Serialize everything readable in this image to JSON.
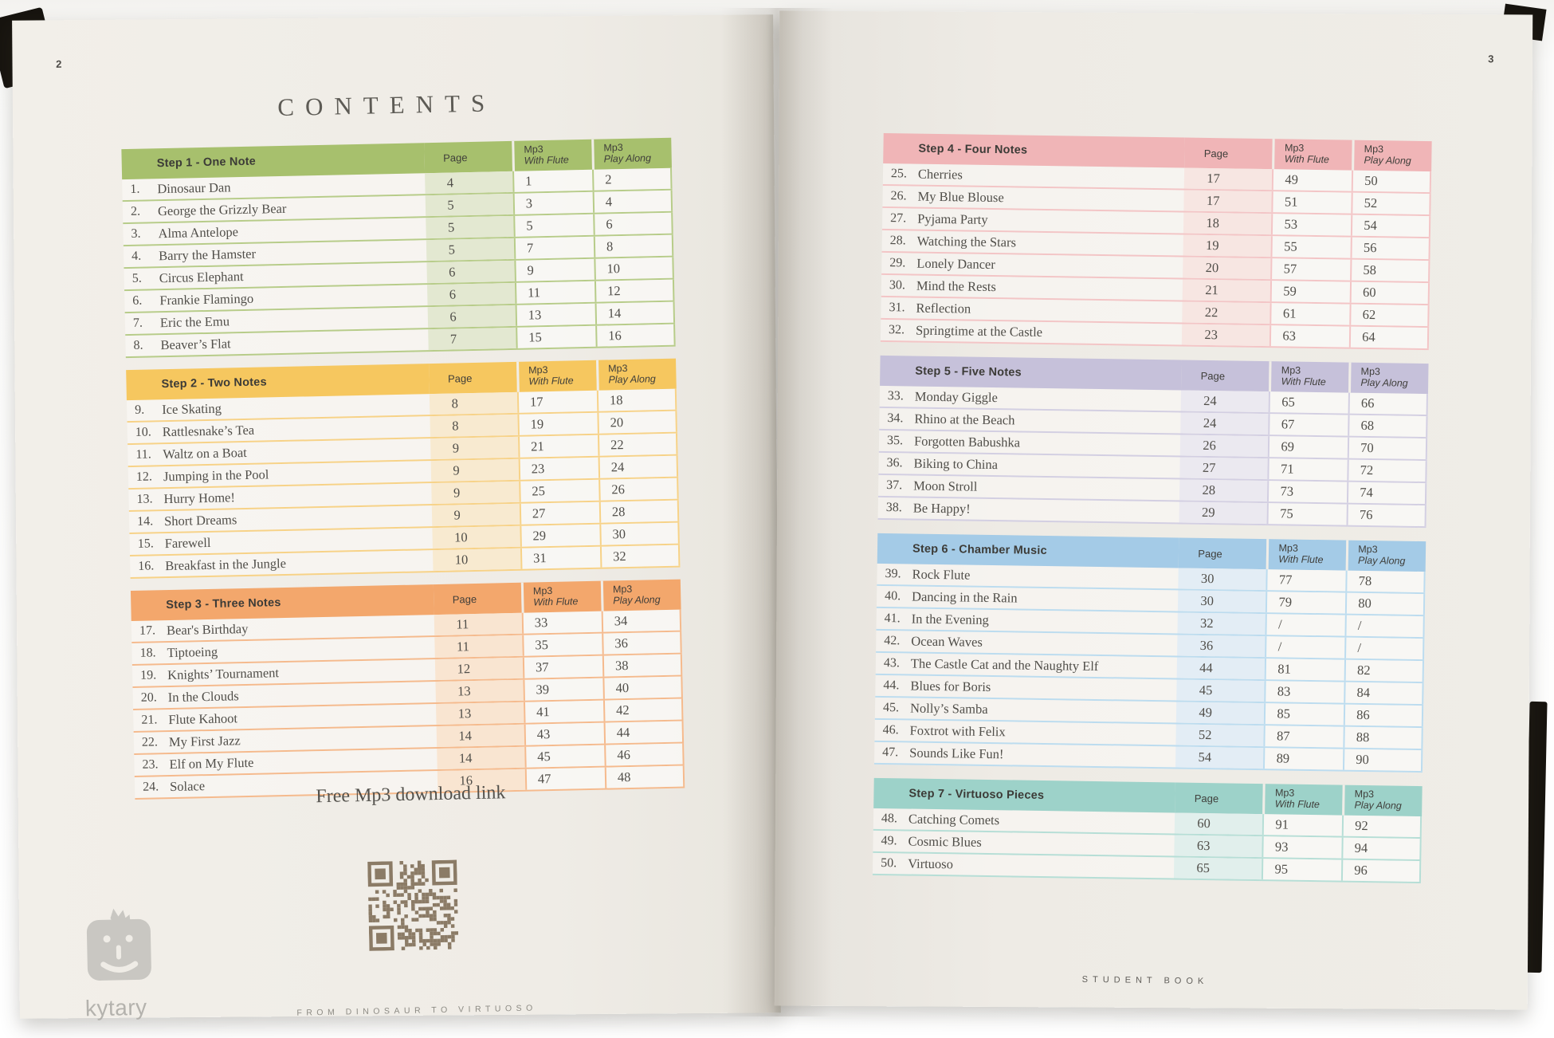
{
  "page_left": {
    "number": "2",
    "title": "CONTENTS",
    "free_mp3_text": "Free Mp3 download link",
    "footer": "FROM DINOSAUR TO VIRTUOSO",
    "brand": "kytary"
  },
  "page_right": {
    "number": "3",
    "footer": "STUDENT BOOK"
  },
  "column_headers": {
    "page": "Page",
    "mp3": "Mp3",
    "with_flute": "With Flute",
    "play_along": "Play Along"
  },
  "sections": [
    {
      "side": "left",
      "title": "Step 1 - One Note",
      "colors": {
        "band": "#a7c06d",
        "line": "#b7cc89",
        "tint": "#e3e8d1"
      },
      "rows": [
        [
          "1.",
          "Dinosaur Dan",
          "4",
          "1",
          "2"
        ],
        [
          "2.",
          "George the Grizzly Bear",
          "5",
          "3",
          "4"
        ],
        [
          "3.",
          "Alma Antelope",
          "5",
          "5",
          "6"
        ],
        [
          "4.",
          "Barry the Hamster",
          "5",
          "7",
          "8"
        ],
        [
          "5.",
          "Circus Elephant",
          "6",
          "9",
          "10"
        ],
        [
          "6.",
          "Frankie Flamingo",
          "6",
          "11",
          "12"
        ],
        [
          "7.",
          "Eric the Emu",
          "6",
          "13",
          "14"
        ],
        [
          "8.",
          "Beaver’s Flat",
          "7",
          "15",
          "16"
        ]
      ]
    },
    {
      "side": "left",
      "title": "Step 2 - Two Notes",
      "colors": {
        "band": "#f6c75f",
        "line": "#f7d287",
        "tint": "#f8ead0"
      },
      "rows": [
        [
          "9.",
          "Ice Skating",
          "8",
          "17",
          "18"
        ],
        [
          "10.",
          "Rattlesnake’s Tea",
          "8",
          "19",
          "20"
        ],
        [
          "11.",
          "Waltz on a Boat",
          "9",
          "21",
          "22"
        ],
        [
          "12.",
          "Jumping in the Pool",
          "9",
          "23",
          "24"
        ],
        [
          "13.",
          "Hurry Home!",
          "9",
          "25",
          "26"
        ],
        [
          "14.",
          "Short Dreams",
          "9",
          "27",
          "28"
        ],
        [
          "15.",
          "Farewell",
          "10",
          "29",
          "30"
        ],
        [
          "16.",
          "Breakfast in the Jungle",
          "10",
          "31",
          "32"
        ]
      ]
    },
    {
      "side": "left",
      "title": "Step 3 - Three Notes",
      "colors": {
        "band": "#f3a76c",
        "line": "#f5ba8d",
        "tint": "#f9e5d1"
      },
      "rows": [
        [
          "17.",
          "Bear's Birthday",
          "11",
          "33",
          "34"
        ],
        [
          "18.",
          "Tiptoeing",
          "11",
          "35",
          "36"
        ],
        [
          "19.",
          "Knights’ Tournament",
          "12",
          "37",
          "38"
        ],
        [
          "20.",
          "In the Clouds",
          "13",
          "39",
          "40"
        ],
        [
          "21.",
          "Flute Kahoot",
          "13",
          "41",
          "42"
        ],
        [
          "22.",
          "My First Jazz",
          "14",
          "43",
          "44"
        ],
        [
          "23.",
          "Elf on My Flute",
          "14",
          "45",
          "46"
        ],
        [
          "24.",
          "Solace",
          "16",
          "47",
          "48"
        ]
      ]
    },
    {
      "side": "right",
      "title": "Step 4 - Four Notes",
      "colors": {
        "band": "#f0b5b7",
        "line": "#f3c5c6",
        "tint": "#f7e6e2"
      },
      "rows": [
        [
          "25.",
          "Cherries",
          "17",
          "49",
          "50"
        ],
        [
          "26.",
          "My Blue Blouse",
          "17",
          "51",
          "52"
        ],
        [
          "27.",
          "Pyjama Party",
          "18",
          "53",
          "54"
        ],
        [
          "28.",
          "Watching the Stars",
          "19",
          "55",
          "56"
        ],
        [
          "29.",
          "Lonely Dancer",
          "20",
          "57",
          "58"
        ],
        [
          "30.",
          "Mind the Rests",
          "21",
          "59",
          "60"
        ],
        [
          "31.",
          "Reflection",
          "22",
          "61",
          "62"
        ],
        [
          "32.",
          "Springtime at the Castle",
          "23",
          "63",
          "64"
        ]
      ]
    },
    {
      "side": "right",
      "title": "Step 5 - Five Notes",
      "colors": {
        "band": "#c6c1da",
        "line": "#d3cfe2",
        "tint": "#ebe9f0"
      },
      "rows": [
        [
          "33.",
          "Monday Giggle",
          "24",
          "65",
          "66"
        ],
        [
          "34.",
          "Rhino at the Beach",
          "24",
          "67",
          "68"
        ],
        [
          "35.",
          "Forgotten Babushka",
          "26",
          "69",
          "70"
        ],
        [
          "36.",
          "Biking to China",
          "27",
          "71",
          "72"
        ],
        [
          "37.",
          "Moon Stroll",
          "28",
          "73",
          "74"
        ],
        [
          "38.",
          "Be Happy!",
          "29",
          "75",
          "76"
        ]
      ]
    },
    {
      "side": "right",
      "title": "Step 6 - Chamber Music",
      "colors": {
        "band": "#a4cbe7",
        "line": "#bcdcef",
        "tint": "#e3edf5"
      },
      "rows": [
        [
          "39.",
          "Rock Flute",
          "30",
          "77",
          "78"
        ],
        [
          "40.",
          "Dancing in the Rain",
          "30",
          "79",
          "80"
        ],
        [
          "41.",
          "In the Evening",
          "32",
          "/",
          "/"
        ],
        [
          "42.",
          "Ocean Waves",
          "36",
          "/",
          "/"
        ],
        [
          "43.",
          "The Castle Cat and the Naughty Elf",
          "44",
          "81",
          "82"
        ],
        [
          "44.",
          "Blues for Boris",
          "45",
          "83",
          "84"
        ],
        [
          "45.",
          "Nolly’s Samba",
          "49",
          "85",
          "86"
        ],
        [
          "46.",
          "Foxtrot with Felix",
          "52",
          "87",
          "88"
        ],
        [
          "47.",
          "Sounds Like Fun!",
          "54",
          "89",
          "90"
        ]
      ]
    },
    {
      "side": "right",
      "title": "Step 7 - Virtuoso Pieces",
      "colors": {
        "band": "#9dd2c9",
        "line": "#b6ded6",
        "tint": "#e1efec"
      },
      "rows": [
        [
          "48.",
          "Catching Comets",
          "60",
          "91",
          "92"
        ],
        [
          "49.",
          "Cosmic Blues",
          "63",
          "93",
          "94"
        ],
        [
          "50.",
          "Virtuoso",
          "65",
          "95",
          "96"
        ]
      ]
    }
  ]
}
